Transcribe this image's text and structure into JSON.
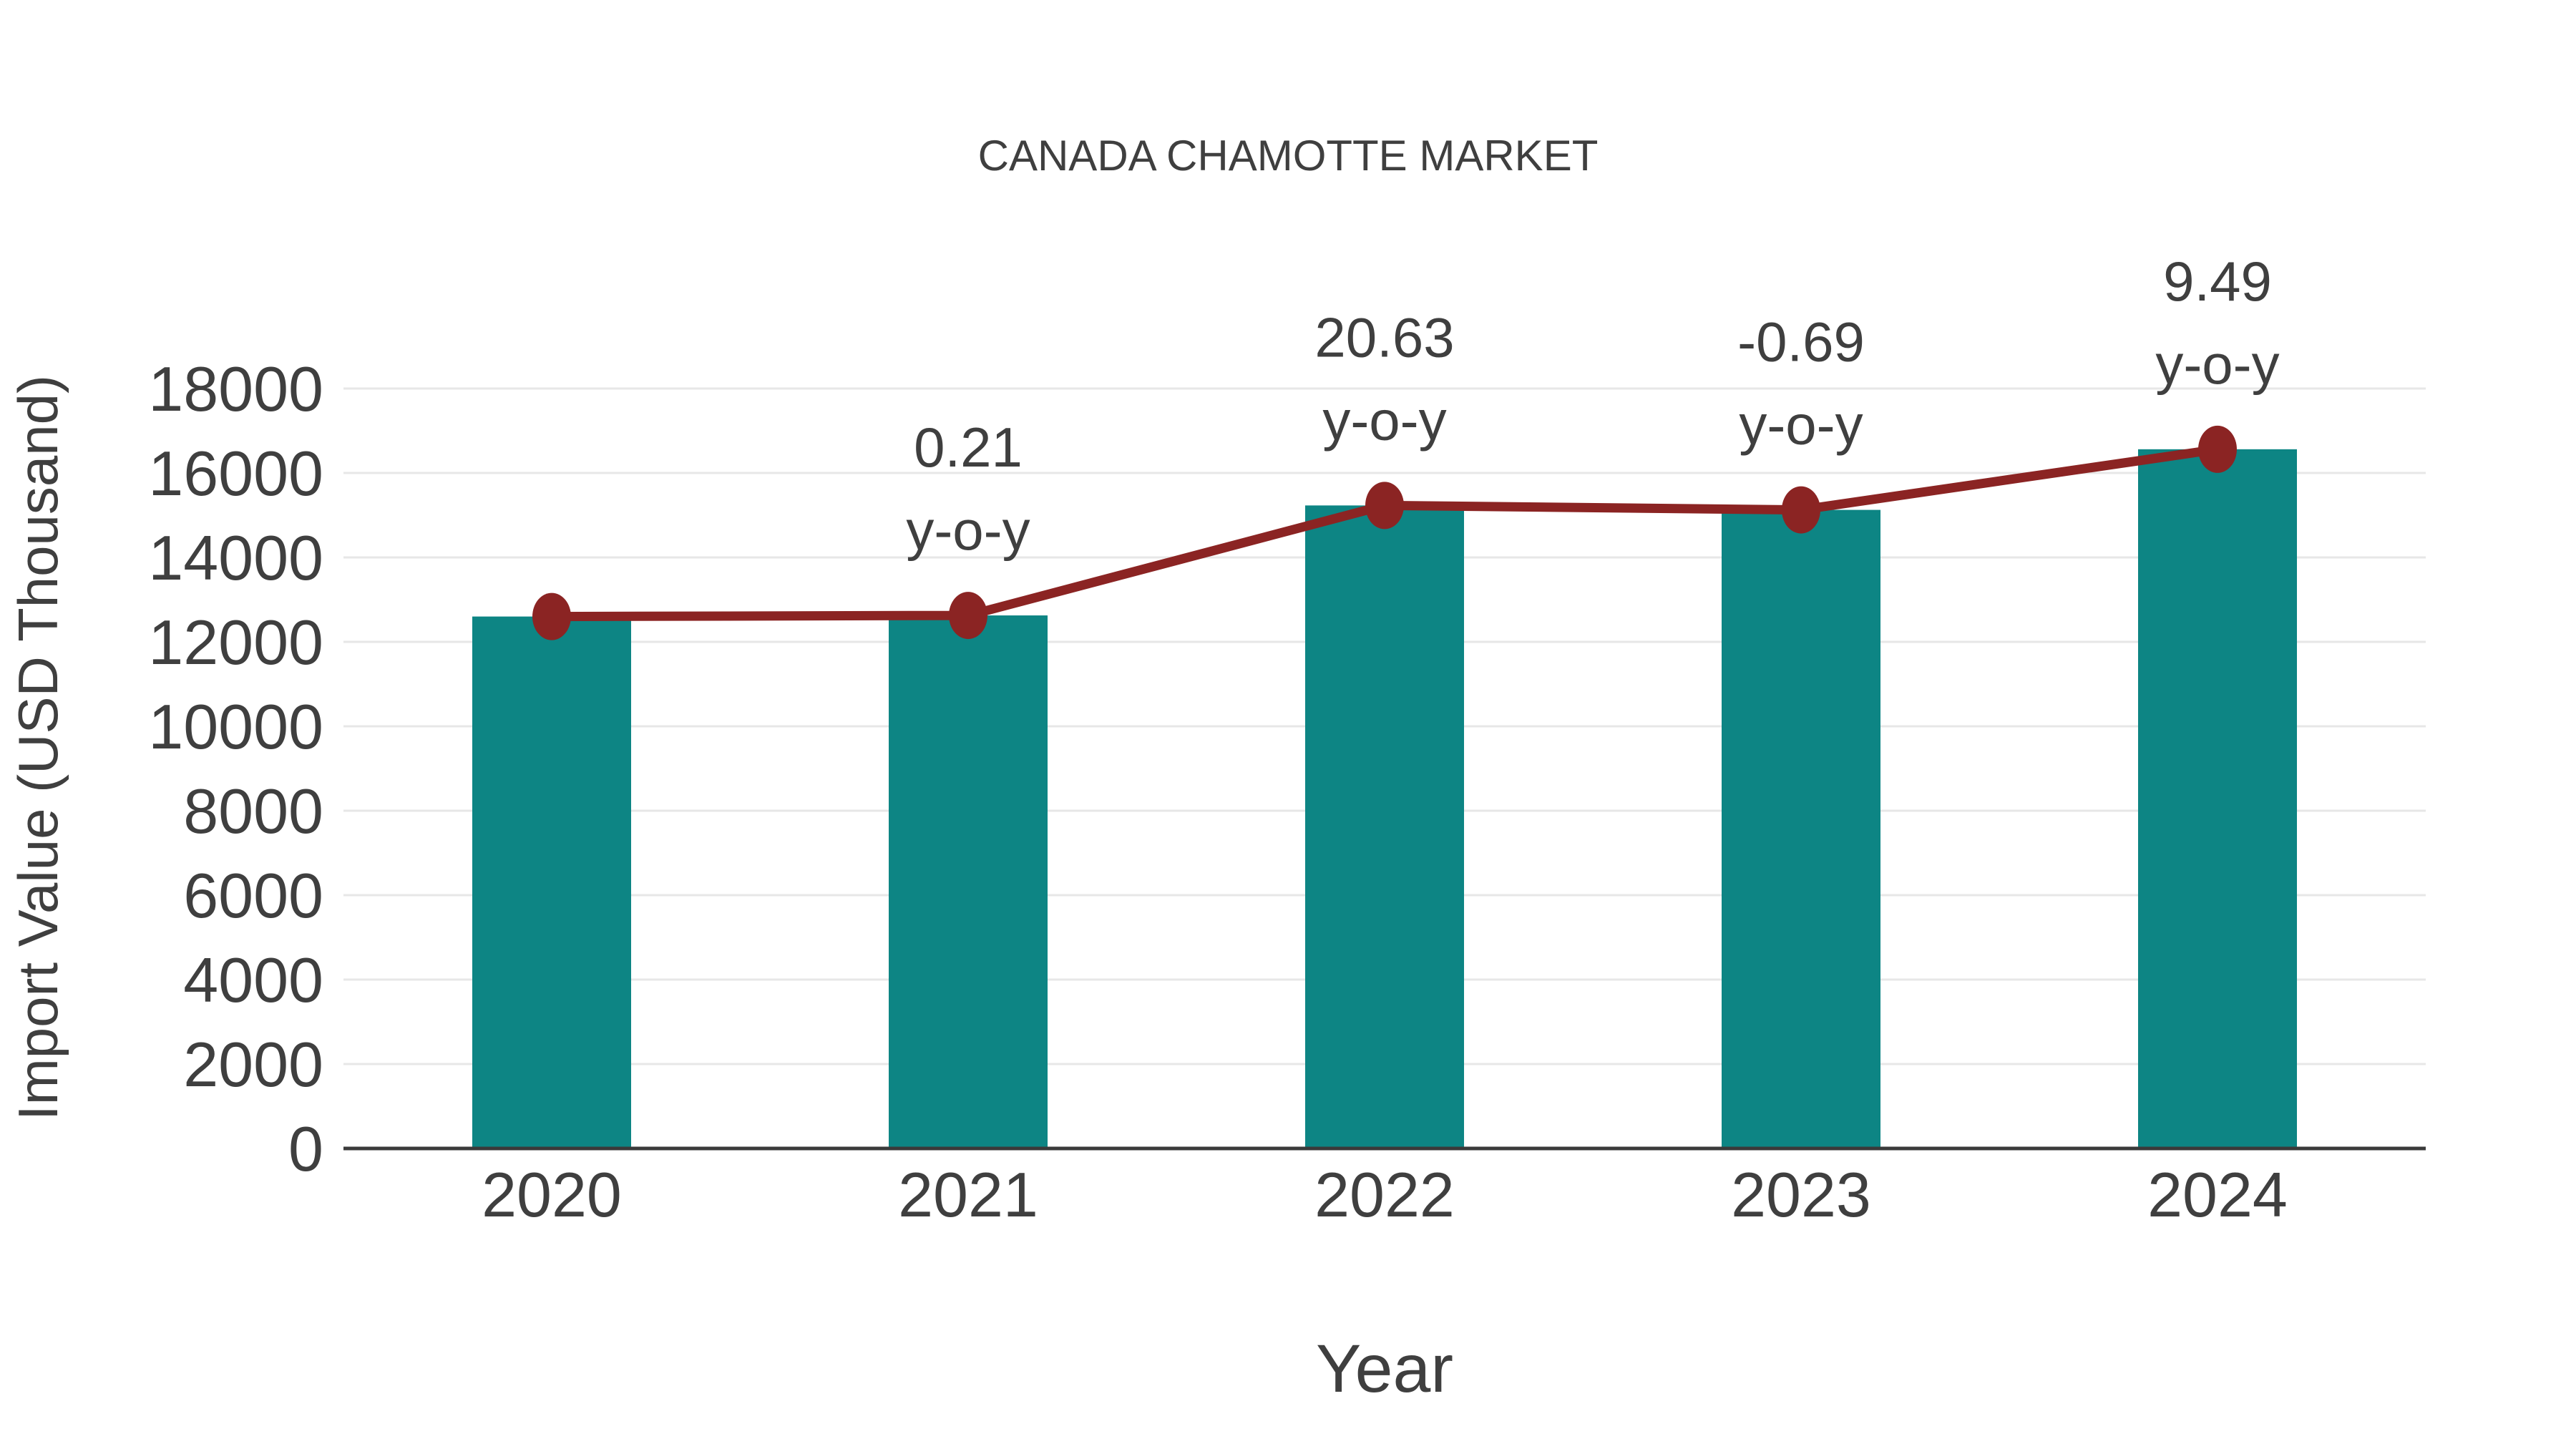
{
  "chart_data": {
    "type": "bar",
    "combo": "bar+line",
    "title": "CANADA CHAMOTTE MARKET",
    "xlabel": "Year",
    "ylabel": "Import Value (USD Thousand)",
    "categories": [
      "2020",
      "2021",
      "2022",
      "2023",
      "2024"
    ],
    "series": [
      {
        "name": "Import Value bars",
        "type": "bar",
        "values": [
          12600,
          12626,
          15231,
          15126,
          16562
        ]
      },
      {
        "name": "Import Value trend line",
        "type": "line",
        "values": [
          12600,
          12626,
          15231,
          15126,
          16562
        ]
      }
    ],
    "annotations": [
      {
        "category": "2021",
        "value_label": "0.21",
        "sub_label": "y-o-y"
      },
      {
        "category": "2022",
        "value_label": "20.63",
        "sub_label": "y-o-y"
      },
      {
        "category": "2023",
        "value_label": "-0.69",
        "sub_label": "y-o-y"
      },
      {
        "category": "2024",
        "value_label": "9.49",
        "sub_label": "y-o-y"
      }
    ],
    "ylim": [
      0,
      18000
    ],
    "ytick_step": 2000,
    "ytick_labels": [
      "0",
      "2000",
      "4000",
      "6000",
      "8000",
      "10000",
      "12000",
      "14000",
      "16000",
      "18000"
    ],
    "grid": true,
    "legend": "none",
    "colors": {
      "bar": "#0d8584",
      "line": "#8b2423",
      "marker": "#8b2423",
      "text": "#3f3f3f",
      "grid": "#e7e7e7",
      "axis": "#3a3a3a",
      "background": "#ffffff"
    }
  }
}
